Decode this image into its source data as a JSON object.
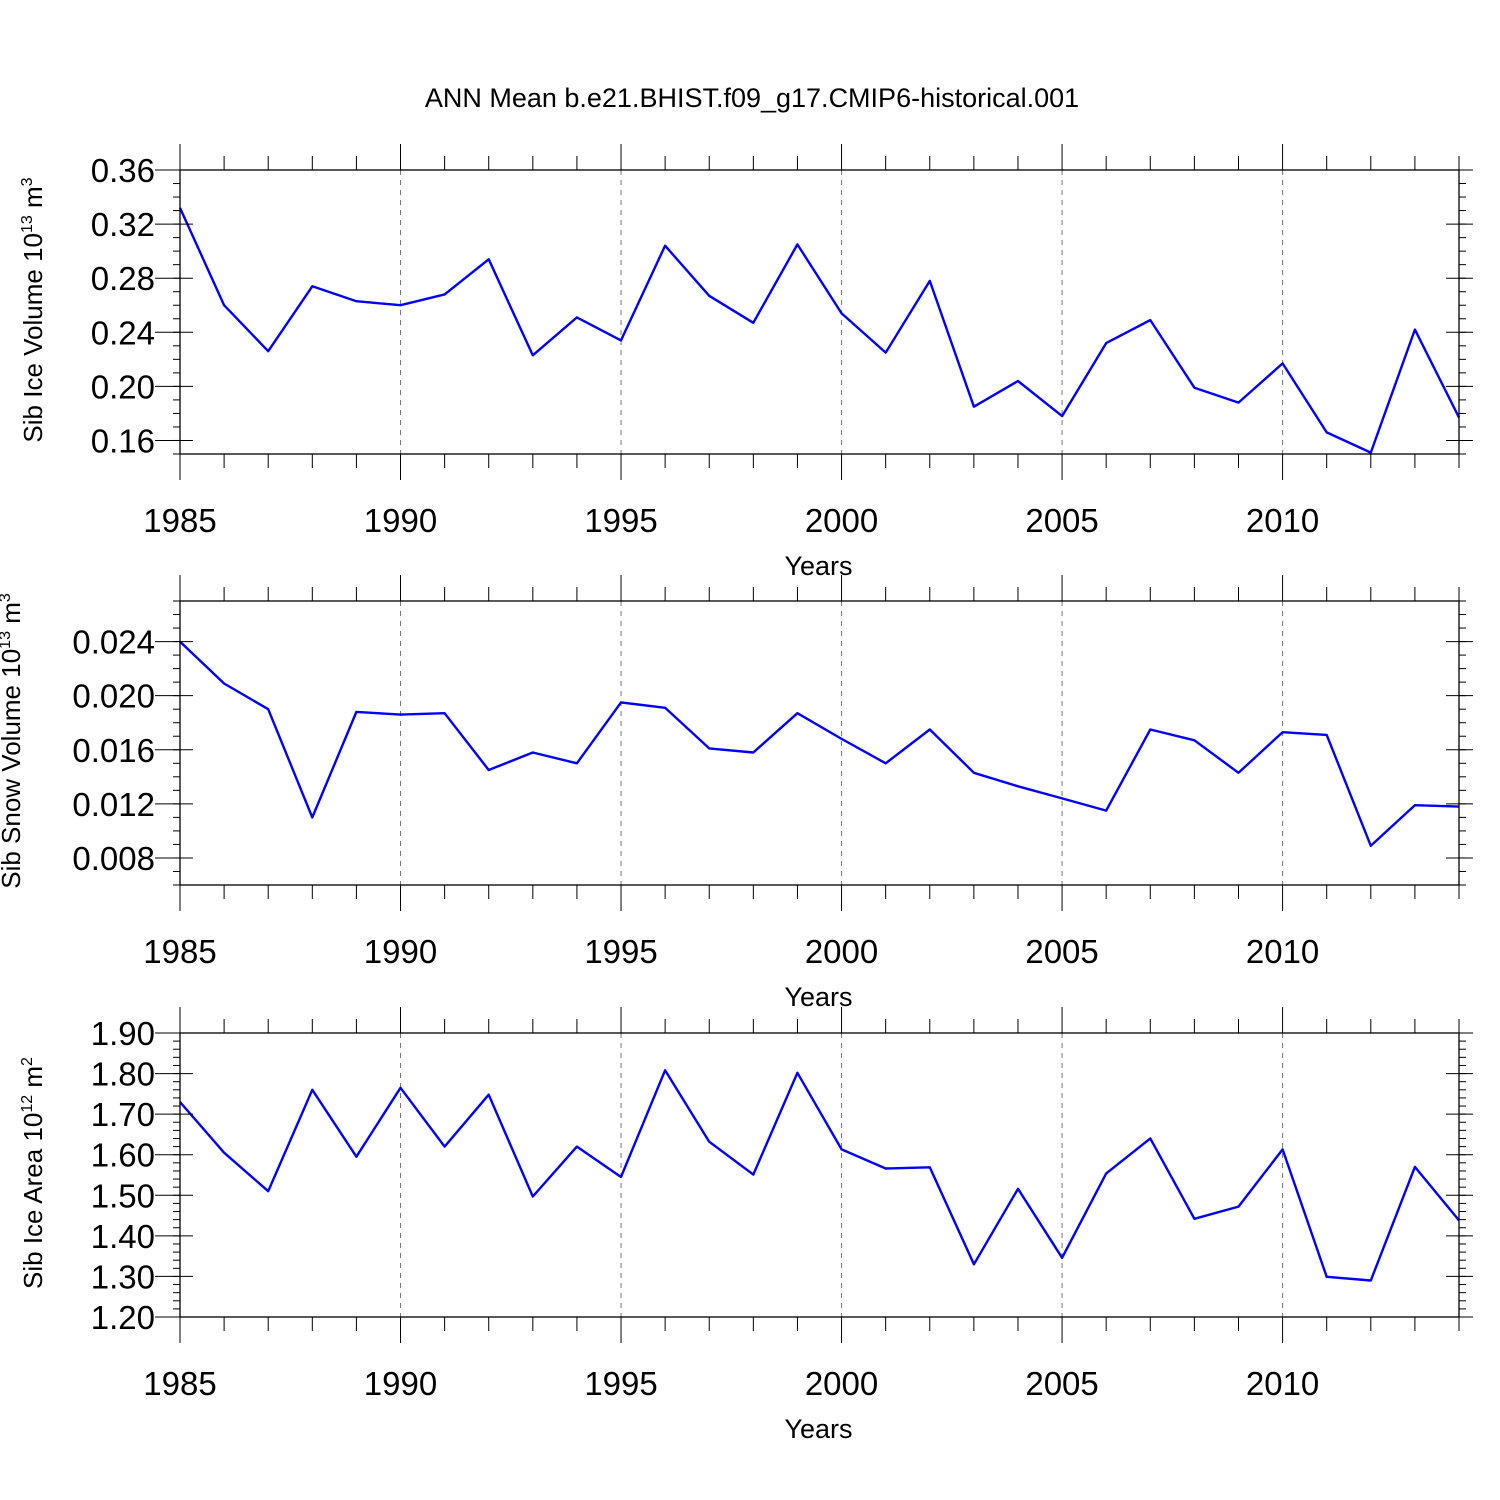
{
  "title": "ANN Mean b.e21.BHIST.f09_g17.CMIP6-historical.001",
  "colors": {
    "line": "#0000ff",
    "grid": "#777777",
    "axis": "#000000",
    "background": "#ffffff"
  },
  "chart_data": [
    {
      "type": "line",
      "xlabel": "Years",
      "ylabel": {
        "text": "Sib Ice Volume 10",
        "sup1": "13",
        "mid": " m",
        "sup2": "3"
      },
      "xlim": [
        1985,
        2014
      ],
      "ylim": [
        0.15,
        0.36
      ],
      "xticks": [
        1985,
        1990,
        1995,
        2000,
        2005,
        2010
      ],
      "xtick_labels": [
        "1985",
        "1990",
        "1995",
        "2000",
        "2005",
        "2010"
      ],
      "yticks": [
        0.16,
        0.2,
        0.24,
        0.28,
        0.32,
        0.36
      ],
      "ytick_labels": [
        "0.16",
        "0.20",
        "0.24",
        "0.28",
        "0.32",
        "0.36"
      ],
      "yminor_step": 0.01,
      "grid": "vertical dashed at major x ticks",
      "x": [
        1985,
        1986,
        1987,
        1988,
        1989,
        1990,
        1991,
        1992,
        1993,
        1994,
        1995,
        1996,
        1997,
        1998,
        1999,
        2000,
        2001,
        2002,
        2003,
        2004,
        2005,
        2006,
        2007,
        2008,
        2009,
        2010,
        2011,
        2012,
        2013,
        2014
      ],
      "values": [
        0.332,
        0.26,
        0.226,
        0.274,
        0.263,
        0.26,
        0.268,
        0.294,
        0.223,
        0.251,
        0.234,
        0.304,
        0.267,
        0.247,
        0.305,
        0.254,
        0.225,
        0.278,
        0.185,
        0.204,
        0.178,
        0.232,
        0.249,
        0.199,
        0.188,
        0.217,
        0.166,
        0.151,
        0.242,
        0.177
      ]
    },
    {
      "type": "line",
      "xlabel": "Years",
      "ylabel": {
        "text": "Sib Snow Volume 10",
        "sup1": "13",
        "mid": " m",
        "sup2": "3"
      },
      "xlim": [
        1985,
        2014
      ],
      "ylim": [
        0.006,
        0.027
      ],
      "xticks": [
        1985,
        1990,
        1995,
        2000,
        2005,
        2010
      ],
      "xtick_labels": [
        "1985",
        "1990",
        "1995",
        "2000",
        "2005",
        "2010"
      ],
      "yticks": [
        0.008,
        0.012,
        0.016,
        0.02,
        0.024
      ],
      "ytick_labels": [
        "0.008",
        "0.012",
        "0.016",
        "0.020",
        "0.024"
      ],
      "yminor_step": 0.001,
      "grid": "vertical dashed at major x ticks",
      "x": [
        1985,
        1986,
        1987,
        1988,
        1989,
        1990,
        1991,
        1992,
        1993,
        1994,
        1995,
        1996,
        1997,
        1998,
        1999,
        2000,
        2001,
        2002,
        2003,
        2004,
        2005,
        2006,
        2007,
        2008,
        2009,
        2010,
        2011,
        2012,
        2013,
        2014
      ],
      "values": [
        0.024,
        0.0209,
        0.019,
        0.011,
        0.0188,
        0.0186,
        0.0187,
        0.0145,
        0.0158,
        0.015,
        0.0195,
        0.0191,
        0.0161,
        0.0158,
        0.0187,
        0.0168,
        0.015,
        0.0175,
        0.0143,
        0.0133,
        0.0124,
        0.0115,
        0.0175,
        0.0167,
        0.0143,
        0.0173,
        0.0171,
        0.0089,
        0.0119,
        0.0118
      ]
    },
    {
      "type": "line",
      "xlabel": "Years",
      "ylabel": {
        "text": "Sib Ice Area 10",
        "sup1": "12",
        "mid": " m",
        "sup2": "2"
      },
      "xlim": [
        1985,
        2014
      ],
      "ylim": [
        1.2,
        1.9
      ],
      "xticks": [
        1985,
        1990,
        1995,
        2000,
        2005,
        2010
      ],
      "xtick_labels": [
        "1985",
        "1990",
        "1995",
        "2000",
        "2005",
        "2010"
      ],
      "yticks": [
        1.2,
        1.3,
        1.4,
        1.5,
        1.6,
        1.7,
        1.8,
        1.9
      ],
      "ytick_labels": [
        "1.20",
        "1.30",
        "1.40",
        "1.50",
        "1.60",
        "1.70",
        "1.80",
        "1.90"
      ],
      "yminor_step": 0.02,
      "grid": "vertical dashed at major x ticks",
      "x": [
        1985,
        1986,
        1987,
        1988,
        1989,
        1990,
        1991,
        1992,
        1993,
        1994,
        1995,
        1996,
        1997,
        1998,
        1999,
        2000,
        2001,
        2002,
        2003,
        2004,
        2005,
        2006,
        2007,
        2008,
        2009,
        2010,
        2011,
        2012,
        2013,
        2014
      ],
      "values": [
        1.73,
        1.605,
        1.51,
        1.76,
        1.595,
        1.765,
        1.62,
        1.748,
        1.497,
        1.62,
        1.545,
        1.808,
        1.632,
        1.551,
        1.802,
        1.613,
        1.566,
        1.569,
        1.33,
        1.516,
        1.346,
        1.554,
        1.64,
        1.442,
        1.472,
        1.613,
        1.299,
        1.29,
        1.57,
        1.438
      ]
    }
  ]
}
